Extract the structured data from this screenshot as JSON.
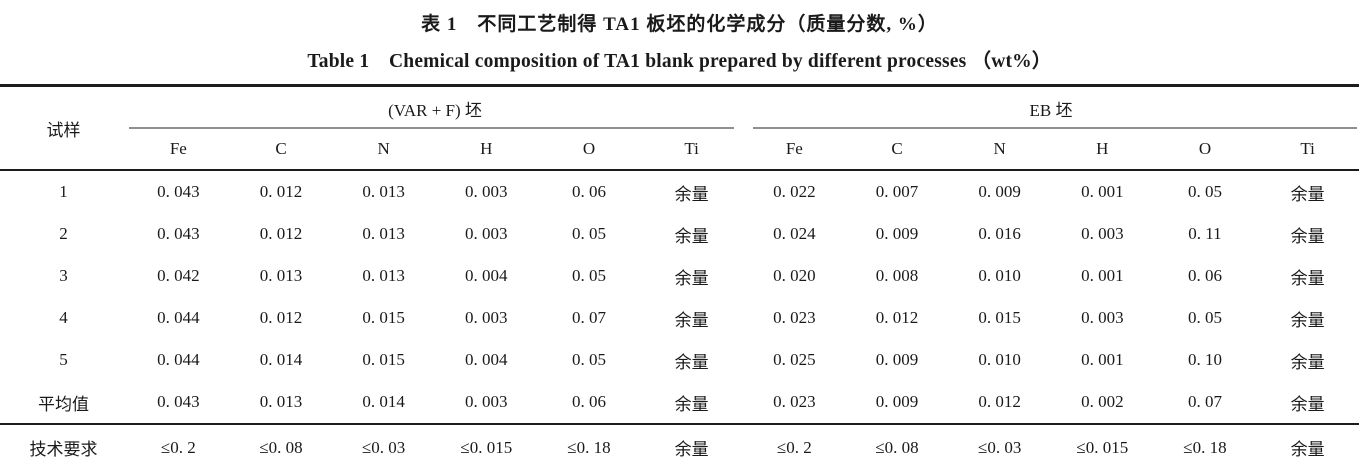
{
  "titles": {
    "zh": "表 1　不同工艺制得 TA1 板坯的化学成分（质量分数, %）",
    "en": "Table 1　Chemical composition of TA1 blank prepared by different processes （wt%）"
  },
  "table": {
    "sample_header": "试样",
    "group1_label": "(VAR + F) 坯",
    "group2_label": "EB 坯",
    "subheaders": [
      "Fe",
      "C",
      "N",
      "H",
      "O",
      "Ti",
      "Fe",
      "C",
      "N",
      "H",
      "O",
      "Ti"
    ],
    "rows": [
      [
        "1",
        "0. 043",
        "0. 012",
        "0. 013",
        "0. 003",
        "0. 06",
        "余量",
        "0. 022",
        "0. 007",
        "0. 009",
        "0. 001",
        "0. 05",
        "余量"
      ],
      [
        "2",
        "0. 043",
        "0. 012",
        "0. 013",
        "0. 003",
        "0. 05",
        "余量",
        "0. 024",
        "0. 009",
        "0. 016",
        "0. 003",
        "0. 11",
        "余量"
      ],
      [
        "3",
        "0. 042",
        "0. 013",
        "0. 013",
        "0. 004",
        "0. 05",
        "余量",
        "0. 020",
        "0. 008",
        "0. 010",
        "0. 001",
        "0. 06",
        "余量"
      ],
      [
        "4",
        "0. 044",
        "0. 012",
        "0. 015",
        "0. 003",
        "0. 07",
        "余量",
        "0. 023",
        "0. 012",
        "0. 015",
        "0. 003",
        "0. 05",
        "余量"
      ],
      [
        "5",
        "0. 044",
        "0. 014",
        "0. 015",
        "0. 004",
        "0. 05",
        "余量",
        "0. 025",
        "0. 009",
        "0. 010",
        "0. 001",
        "0. 10",
        "余量"
      ],
      [
        "平均值",
        "0. 043",
        "0. 013",
        "0. 014",
        "0. 003",
        "0. 06",
        "余量",
        "0. 023",
        "0. 009",
        "0. 012",
        "0. 002",
        "0. 07",
        "余量"
      ],
      [
        "技术要求",
        "≤0. 2",
        "≤0. 08",
        "≤0. 03",
        "≤0. 015",
        "≤0. 18",
        "余量",
        "≤0. 2",
        "≤0. 08",
        "≤0. 03",
        "≤0. 015",
        "≤0. 18",
        "余量"
      ]
    ]
  }
}
